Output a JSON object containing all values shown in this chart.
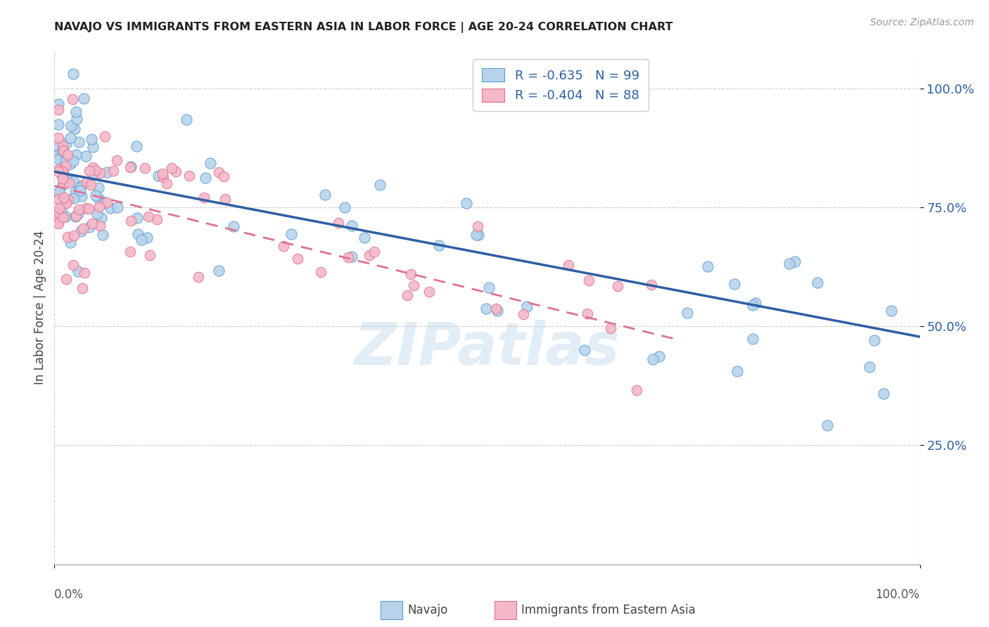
{
  "title": "NAVAJO VS IMMIGRANTS FROM EASTERN ASIA IN LABOR FORCE | AGE 20-24 CORRELATION CHART",
  "source": "Source: ZipAtlas.com",
  "ylabel": "In Labor Force | Age 20-24",
  "ytick_labels": [
    "25.0%",
    "50.0%",
    "75.0%",
    "100.0%"
  ],
  "ytick_values": [
    0.25,
    0.5,
    0.75,
    1.0
  ],
  "legend_label_blue": "R = -0.635   N = 99",
  "legend_label_pink": "R = -0.404   N = 88",
  "footer_navajo": "Navajo",
  "footer_immigrants": "Immigrants from Eastern Asia",
  "watermark": "ZIPatlas",
  "blue_scatter_color": "#b8d4ea",
  "blue_edge_color": "#5b9bd5",
  "pink_scatter_color": "#f4b8c8",
  "pink_edge_color": "#e07090",
  "blue_line_color": "#2e5fa3",
  "pink_line_color": "#e07090",
  "background_color": "#ffffff",
  "grid_color": "#cccccc",
  "blue_R": -0.635,
  "blue_N": 99,
  "pink_R": -0.404,
  "pink_N": 88
}
